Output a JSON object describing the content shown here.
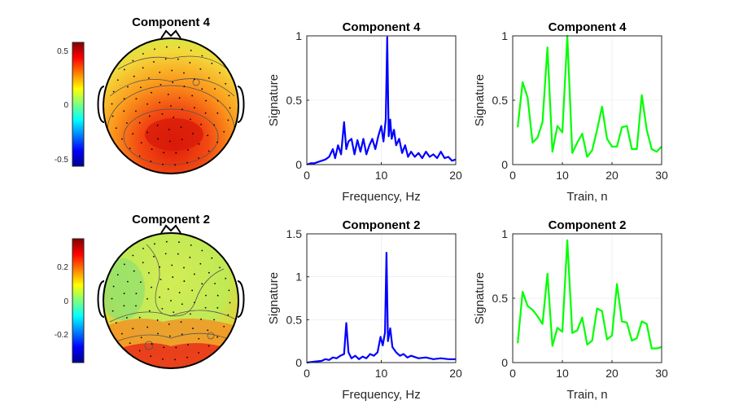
{
  "colors": {
    "spectrum": "#0000ff",
    "train": "#00ff00",
    "axis": "#262626"
  },
  "chart_data": [
    {
      "type": "heatmap",
      "subtype": "scalp-topography",
      "title": "Component 4",
      "colorbar": {
        "ticks": [
          "0.5",
          "0",
          "-0.5"
        ],
        "tick_values": [
          0.5,
          0,
          -0.5
        ],
        "range": [
          -0.55,
          0.6
        ],
        "colormap": "jet"
      },
      "hotspot": "posterior (red), frontal periphery (yellow-green)"
    },
    {
      "type": "line",
      "title": "Component 4",
      "xlabel": "Frequency, Hz",
      "ylabel": "Signature",
      "xlim": [
        0,
        20
      ],
      "ylim": [
        0,
        1
      ],
      "xticks": [
        "0",
        "10",
        "20"
      ],
      "xtick_values": [
        0,
        10,
        20
      ],
      "yticks": [
        "0",
        "0.5",
        "1"
      ],
      "ytick_values": [
        0,
        0.5,
        1
      ],
      "x": [
        0,
        0.5,
        1,
        1.5,
        2,
        2.5,
        3,
        3.5,
        3.8,
        4.2,
        4.6,
        5.0,
        5.3,
        5.6,
        6,
        6.4,
        6.8,
        7.2,
        7.6,
        8,
        8.4,
        8.8,
        9.2,
        9.6,
        10,
        10.3,
        10.6,
        10.8,
        11.0,
        11.2,
        11.4,
        11.7,
        12,
        12.4,
        12.8,
        13.2,
        13.6,
        14,
        14.5,
        15,
        15.5,
        16,
        16.5,
        17,
        17.5,
        18,
        18.5,
        19,
        19.5,
        20
      ],
      "values": [
        0,
        0.01,
        0.01,
        0.02,
        0.03,
        0.04,
        0.06,
        0.12,
        0.05,
        0.15,
        0.08,
        0.33,
        0.12,
        0.18,
        0.2,
        0.08,
        0.19,
        0.1,
        0.2,
        0.08,
        0.15,
        0.2,
        0.12,
        0.22,
        0.3,
        0.18,
        0.35,
        0.99,
        0.22,
        0.35,
        0.2,
        0.27,
        0.15,
        0.2,
        0.09,
        0.15,
        0.06,
        0.1,
        0.06,
        0.09,
        0.05,
        0.1,
        0.06,
        0.08,
        0.05,
        0.1,
        0.05,
        0.06,
        0.03,
        0.04
      ]
    },
    {
      "type": "line",
      "title": "Component 4",
      "xlabel": "Train, n",
      "ylabel": "Signature",
      "xlim": [
        0,
        30
      ],
      "ylim": [
        0,
        1
      ],
      "xticks": [
        "0",
        "10",
        "20",
        "30"
      ],
      "xtick_values": [
        0,
        10,
        20,
        30
      ],
      "yticks": [
        "0",
        "0.5",
        "1"
      ],
      "ytick_values": [
        0,
        0.5,
        1
      ],
      "x": [
        1,
        2,
        3,
        4,
        5,
        6,
        7,
        8,
        9,
        10,
        11,
        12,
        13,
        14,
        15,
        16,
        17,
        18,
        19,
        20,
        21,
        22,
        23,
        24,
        25,
        26,
        27,
        28,
        29,
        30
      ],
      "values": [
        0.29,
        0.64,
        0.52,
        0.17,
        0.21,
        0.33,
        0.91,
        0.1,
        0.3,
        0.25,
        1.0,
        0.09,
        0.17,
        0.24,
        0.06,
        0.11,
        0.27,
        0.45,
        0.2,
        0.14,
        0.14,
        0.29,
        0.3,
        0.12,
        0.12,
        0.54,
        0.27,
        0.12,
        0.1,
        0.14
      ]
    },
    {
      "type": "heatmap",
      "subtype": "scalp-topography",
      "title": "Component 2",
      "colorbar": {
        "ticks": [
          "0.2",
          "0",
          "-0.2"
        ],
        "tick_values": [
          0.2,
          0,
          -0.2
        ],
        "range": [
          -0.36,
          0.36
        ],
        "colormap": "jet"
      },
      "hotspot": "posterior edge (red), left temporal (cyan-green)"
    },
    {
      "type": "line",
      "title": "Component 2",
      "xlabel": "Frequency, Hz",
      "ylabel": "Signature",
      "xlim": [
        0,
        20
      ],
      "ylim": [
        0,
        1.5
      ],
      "xticks": [
        "0",
        "10",
        "20"
      ],
      "xtick_values": [
        0,
        10,
        20
      ],
      "yticks": [
        "0",
        "0.5",
        "1",
        "1.5"
      ],
      "ytick_values": [
        0,
        0.5,
        1,
        1.5
      ],
      "x": [
        0,
        1,
        2,
        2.5,
        3,
        3.5,
        4,
        4.5,
        5,
        5.3,
        5.6,
        6,
        6.5,
        7,
        7.5,
        8,
        8.5,
        9,
        9.5,
        9.9,
        10.2,
        10.5,
        10.7,
        10.9,
        11.2,
        11.5,
        12,
        12.5,
        13,
        13.5,
        14,
        15,
        16,
        17,
        18,
        19,
        20
      ],
      "values": [
        0,
        0.01,
        0.02,
        0.04,
        0.03,
        0.06,
        0.05,
        0.08,
        0.1,
        0.46,
        0.12,
        0.05,
        0.08,
        0.04,
        0.07,
        0.05,
        0.1,
        0.08,
        0.12,
        0.3,
        0.2,
        0.35,
        1.28,
        0.25,
        0.4,
        0.18,
        0.12,
        0.08,
        0.1,
        0.06,
        0.08,
        0.05,
        0.06,
        0.04,
        0.05,
        0.04,
        0.04
      ]
    },
    {
      "type": "line",
      "title": "Component 2",
      "xlabel": "Train, n",
      "ylabel": "Signature",
      "xlim": [
        0,
        30
      ],
      "ylim": [
        0,
        1
      ],
      "xticks": [
        "0",
        "10",
        "20",
        "30"
      ],
      "xtick_values": [
        0,
        10,
        20,
        30
      ],
      "yticks": [
        "0",
        "0.5",
        "1"
      ],
      "ytick_values": [
        0,
        0.5,
        1
      ],
      "x": [
        1,
        2,
        3,
        4,
        5,
        6,
        7,
        8,
        9,
        10,
        11,
        12,
        13,
        14,
        15,
        16,
        17,
        18,
        19,
        20,
        21,
        22,
        23,
        24,
        25,
        26,
        27,
        28,
        29,
        30
      ],
      "values": [
        0.15,
        0.55,
        0.44,
        0.41,
        0.36,
        0.3,
        0.69,
        0.13,
        0.27,
        0.24,
        0.95,
        0.23,
        0.25,
        0.35,
        0.14,
        0.17,
        0.42,
        0.4,
        0.18,
        0.21,
        0.61,
        0.32,
        0.31,
        0.17,
        0.19,
        0.32,
        0.3,
        0.11,
        0.11,
        0.12
      ]
    }
  ]
}
